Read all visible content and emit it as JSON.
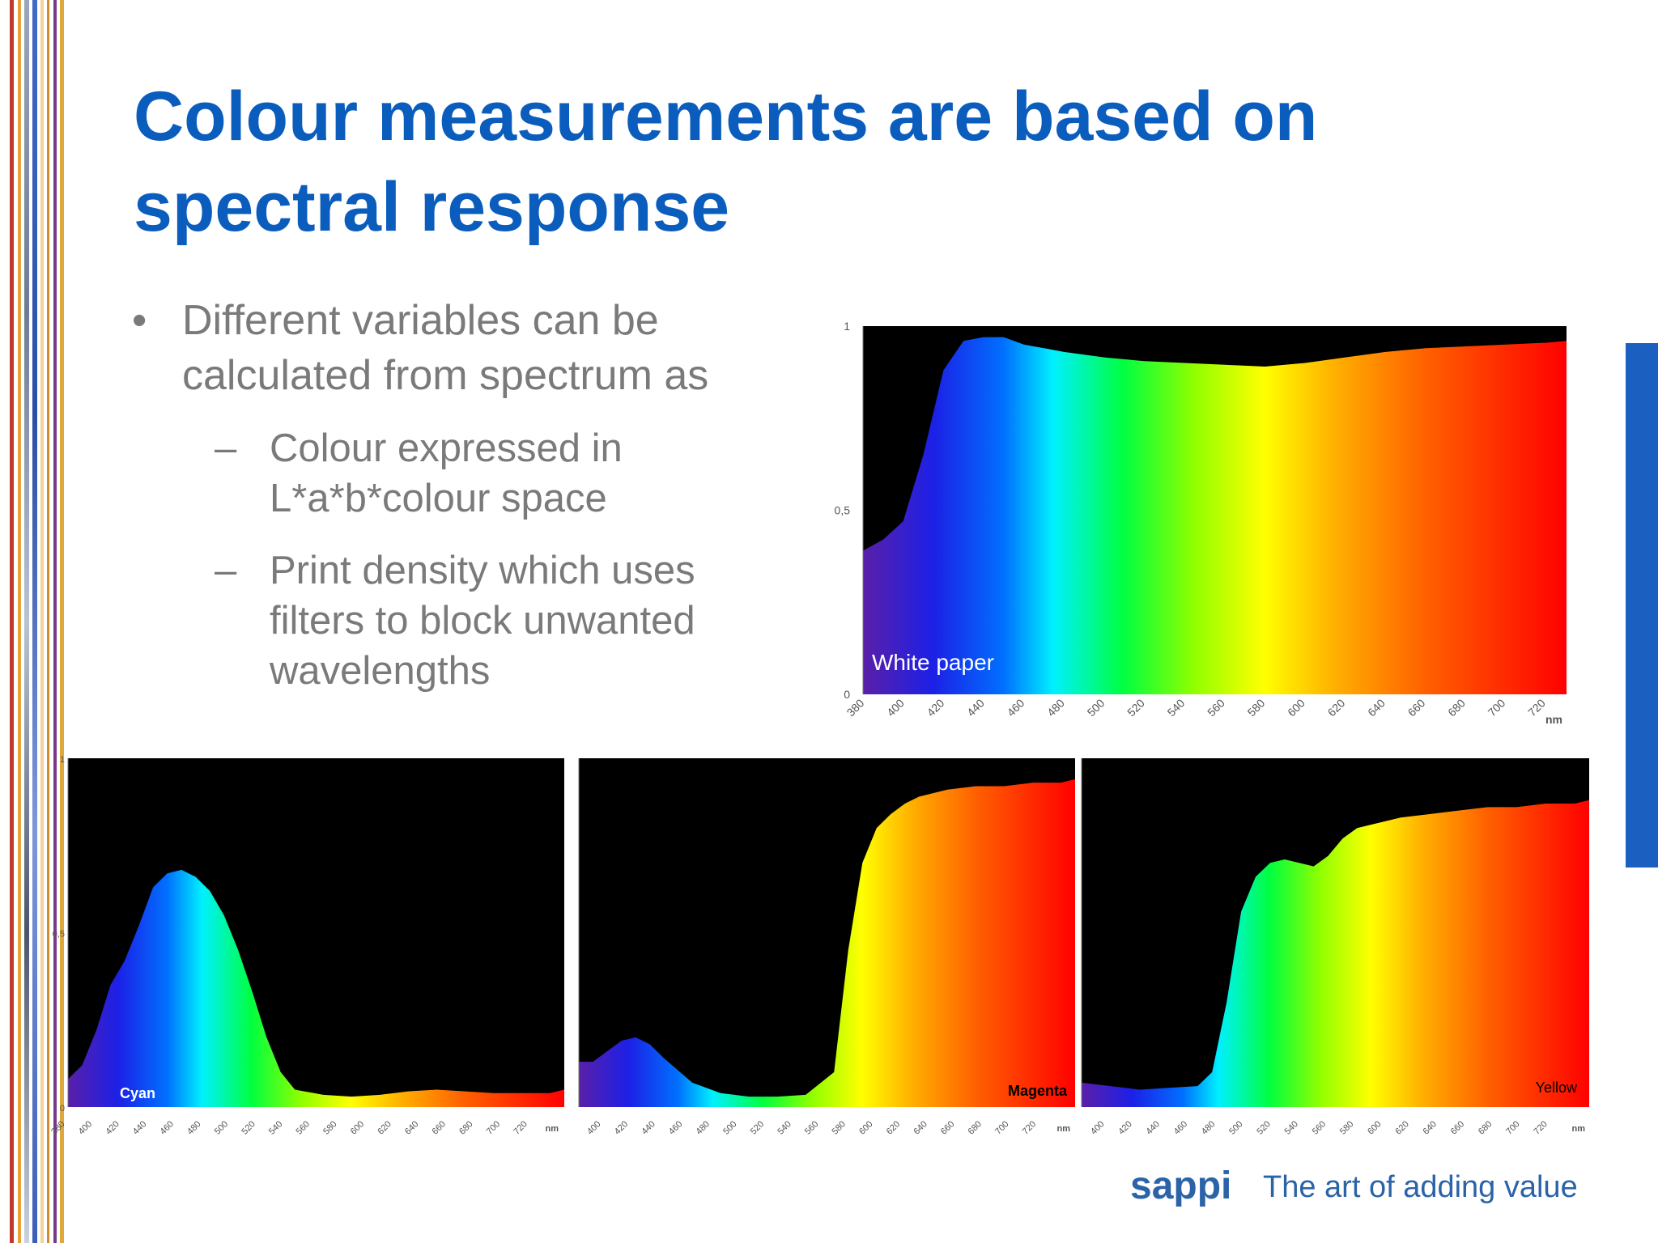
{
  "slide": {
    "title_line1": "Colour measurements are based on",
    "title_line2": "spectral response",
    "bullet1_line1": "Different variables can be",
    "bullet1_line2": "calculated from spectrum as",
    "sub1_line1": "Colour expressed in",
    "sub1_line2": "L*a*b*colour space",
    "sub2_line1": "Print density which uses",
    "sub2_line2": "filters to block unwanted",
    "sub2_line3": "wavelengths",
    "bullet_glyph": "•",
    "dash_glyph": "–"
  },
  "footer": {
    "brand": "sappi",
    "tagline": "The art of adding value"
  },
  "colors": {
    "title": "#0a5dbd",
    "body_text": "#7a7a7a",
    "accent_bar": "#1b5fc0",
    "chart_background": "#000000",
    "brand": "#2b63a8"
  },
  "chart_data": [
    {
      "type": "area",
      "label": "White paper",
      "x_unit": "nm",
      "ylim": [
        0,
        1
      ],
      "y_ticks": [
        "0",
        "0,5",
        "1"
      ],
      "x_ticks": [
        "380",
        "400",
        "420",
        "440",
        "460",
        "480",
        "500",
        "520",
        "540",
        "560",
        "580",
        "600",
        "620",
        "640",
        "660",
        "680",
        "700",
        "720"
      ],
      "x": [
        380,
        390,
        400,
        410,
        420,
        430,
        440,
        450,
        460,
        470,
        480,
        500,
        520,
        540,
        560,
        580,
        600,
        620,
        640,
        660,
        680,
        700,
        720,
        730
      ],
      "y": [
        0.39,
        0.42,
        0.47,
        0.65,
        0.88,
        0.96,
        0.97,
        0.97,
        0.95,
        0.94,
        0.93,
        0.915,
        0.905,
        0.9,
        0.895,
        0.89,
        0.9,
        0.915,
        0.93,
        0.94,
        0.945,
        0.95,
        0.955,
        0.96
      ],
      "grid": false,
      "fill": "spectrum"
    },
    {
      "type": "area",
      "label": "Cyan",
      "x_unit": "nm",
      "ylim": [
        0,
        1
      ],
      "y_ticks": [
        "0",
        "0,5",
        "1"
      ],
      "x_ticks": [
        "380",
        "400",
        "420",
        "440",
        "460",
        "480",
        "500",
        "520",
        "540",
        "560",
        "580",
        "600",
        "620",
        "640",
        "660",
        "680",
        "700",
        "720"
      ],
      "x": [
        380,
        390,
        400,
        410,
        420,
        430,
        440,
        450,
        460,
        470,
        480,
        490,
        500,
        510,
        520,
        530,
        540,
        560,
        580,
        600,
        620,
        640,
        660,
        680,
        700,
        720,
        730
      ],
      "y": [
        0.08,
        0.12,
        0.22,
        0.35,
        0.42,
        0.52,
        0.63,
        0.67,
        0.68,
        0.66,
        0.62,
        0.55,
        0.45,
        0.33,
        0.2,
        0.1,
        0.05,
        0.035,
        0.03,
        0.035,
        0.045,
        0.05,
        0.045,
        0.04,
        0.04,
        0.04,
        0.05
      ],
      "grid": false,
      "fill": "spectrum"
    },
    {
      "type": "area",
      "label": "Magenta",
      "x_unit": "nm",
      "ylim": [
        0,
        1
      ],
      "y_ticks": [],
      "x_ticks": [
        "400",
        "420",
        "440",
        "460",
        "480",
        "500",
        "520",
        "540",
        "560",
        "580",
        "600",
        "620",
        "640",
        "660",
        "680",
        "700",
        "720"
      ],
      "x": [
        380,
        390,
        400,
        410,
        420,
        430,
        440,
        460,
        480,
        500,
        520,
        540,
        560,
        570,
        580,
        590,
        600,
        610,
        620,
        640,
        660,
        680,
        700,
        720,
        730
      ],
      "y": [
        0.13,
        0.13,
        0.16,
        0.19,
        0.2,
        0.18,
        0.14,
        0.07,
        0.04,
        0.03,
        0.03,
        0.035,
        0.1,
        0.45,
        0.7,
        0.8,
        0.84,
        0.87,
        0.89,
        0.91,
        0.92,
        0.92,
        0.93,
        0.93,
        0.94
      ],
      "grid": false,
      "fill": "spectrum"
    },
    {
      "type": "area",
      "label": "Yellow",
      "x_unit": "nm",
      "ylim": [
        0,
        1
      ],
      "y_ticks": [],
      "x_ticks": [
        "400",
        "420",
        "440",
        "460",
        "480",
        "500",
        "520",
        "540",
        "560",
        "580",
        "600",
        "620",
        "640",
        "660",
        "680",
        "700",
        "720"
      ],
      "x": [
        380,
        400,
        420,
        440,
        460,
        470,
        480,
        490,
        500,
        510,
        520,
        530,
        540,
        550,
        560,
        570,
        580,
        600,
        620,
        640,
        660,
        680,
        700,
        720,
        730
      ],
      "y": [
        0.07,
        0.06,
        0.05,
        0.055,
        0.06,
        0.1,
        0.3,
        0.56,
        0.66,
        0.7,
        0.71,
        0.7,
        0.69,
        0.72,
        0.77,
        0.8,
        0.81,
        0.83,
        0.84,
        0.85,
        0.86,
        0.86,
        0.87,
        0.87,
        0.88
      ],
      "grid": false,
      "fill": "spectrum"
    }
  ]
}
